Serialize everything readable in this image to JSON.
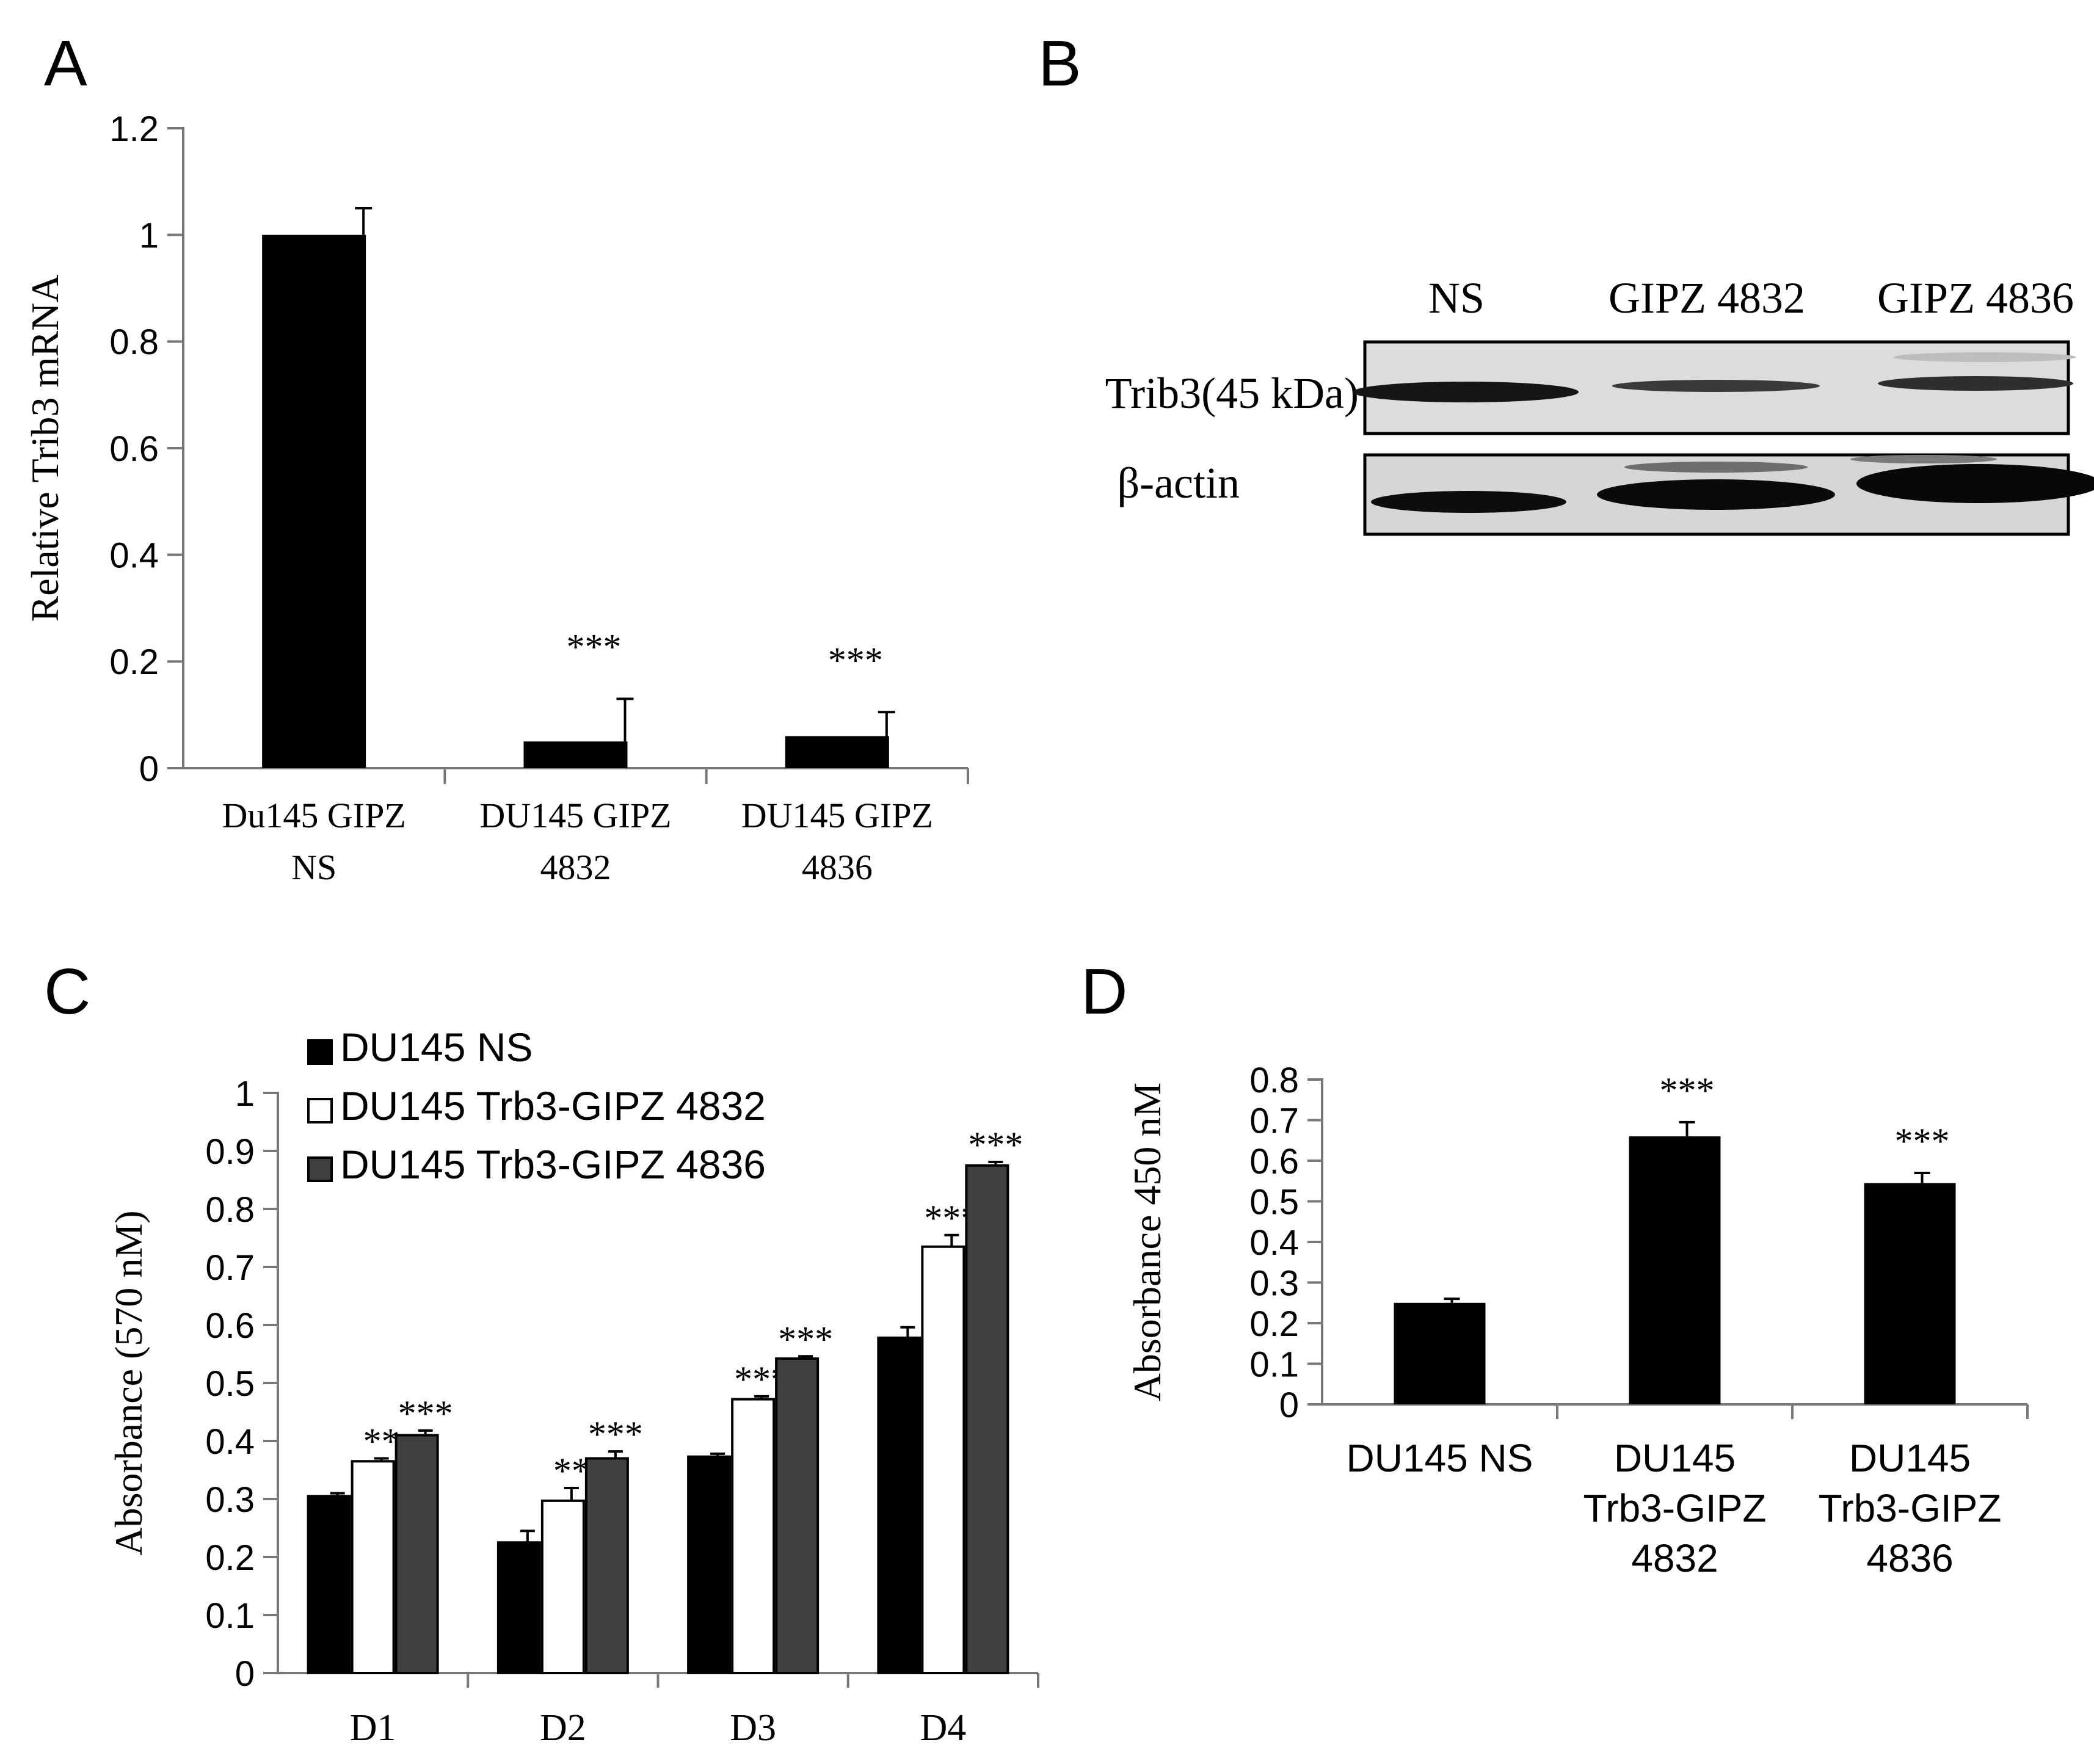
{
  "panel_labels": {
    "a": "A",
    "b": "B",
    "c": "C",
    "d": "D"
  },
  "blot": {
    "lanes": [
      "NS",
      "GIPZ 4832",
      "GIPZ 4836"
    ],
    "rows": [
      "Trib3(45 kDa)",
      "β-actin"
    ],
    "band_color": "#111111",
    "membrane_color": "#dcdcdc"
  },
  "colors": {
    "black": "#000000",
    "white": "#ffffff",
    "dark_gray": "#404040"
  },
  "chart_data": [
    {
      "panel": "A",
      "type": "bar",
      "title": "",
      "xlabel": "",
      "ylabel": "Relative Trib3 mRNA",
      "ylim": [
        0,
        1.2
      ],
      "yticks": [
        "0",
        "0.2",
        "0.4",
        "0.6",
        "0.8",
        "1",
        "1.2"
      ],
      "categories": [
        [
          "Du145 GIPZ",
          "NS"
        ],
        [
          "DU145 GIPZ",
          "4832"
        ],
        [
          "DU145 GIPZ",
          "4836"
        ]
      ],
      "values": [
        1.0,
        0.05,
        0.06
      ],
      "errors": [
        0.05,
        0.08,
        0.045
      ],
      "annotations": [
        "",
        "***",
        "***"
      ]
    },
    {
      "panel": "C",
      "type": "bar",
      "title": "",
      "xlabel": "",
      "ylabel": "Absorbance  (570 nM)",
      "ylim": [
        0,
        1
      ],
      "yticks": [
        "0",
        "0.1",
        "0.2",
        "0.3",
        "0.4",
        "0.5",
        "0.6",
        "0.7",
        "0.8",
        "0.9",
        "1"
      ],
      "categories": [
        "D1",
        "D2",
        "D3",
        "D4"
      ],
      "legend": "top-left",
      "series": [
        {
          "name": "DU145 NS",
          "values": [
            0.305,
            0.225,
            0.373,
            0.578
          ],
          "errors": [
            0.005,
            0.02,
            0.005,
            0.018
          ],
          "annotations": [
            "",
            "",
            "",
            ""
          ]
        },
        {
          "name": "DU145 Trb3-GIPZ 4832",
          "values": [
            0.365,
            0.297,
            0.472,
            0.735
          ],
          "errors": [
            0.005,
            0.022,
            0.005,
            0.02
          ],
          "annotations": [
            "**",
            "**",
            "***",
            "***"
          ]
        },
        {
          "name": "DU145 Trb3-GIPZ 4836",
          "values": [
            0.41,
            0.37,
            0.542,
            0.875
          ],
          "errors": [
            0.008,
            0.012,
            0.004,
            0.006
          ],
          "annotations": [
            "***",
            "***",
            "***",
            "***"
          ]
        }
      ]
    },
    {
      "panel": "D",
      "type": "bar",
      "title": "",
      "xlabel": "",
      "ylabel": "Absorbance  450 nM",
      "ylim": [
        0,
        0.8
      ],
      "yticks": [
        "0",
        "0.1",
        "0.2",
        "0.3",
        "0.4",
        "0.5",
        "0.6",
        "0.7",
        "0.8"
      ],
      "categories": [
        [
          "DU145 NS"
        ],
        [
          "DU145",
          "Trb3-GIPZ",
          "4832"
        ],
        [
          "DU145",
          "Trb3-GIPZ",
          "4836"
        ]
      ],
      "values": [
        0.25,
        0.66,
        0.545
      ],
      "errors": [
        0.01,
        0.035,
        0.025
      ],
      "annotations": [
        "",
        "***",
        "***"
      ]
    }
  ]
}
